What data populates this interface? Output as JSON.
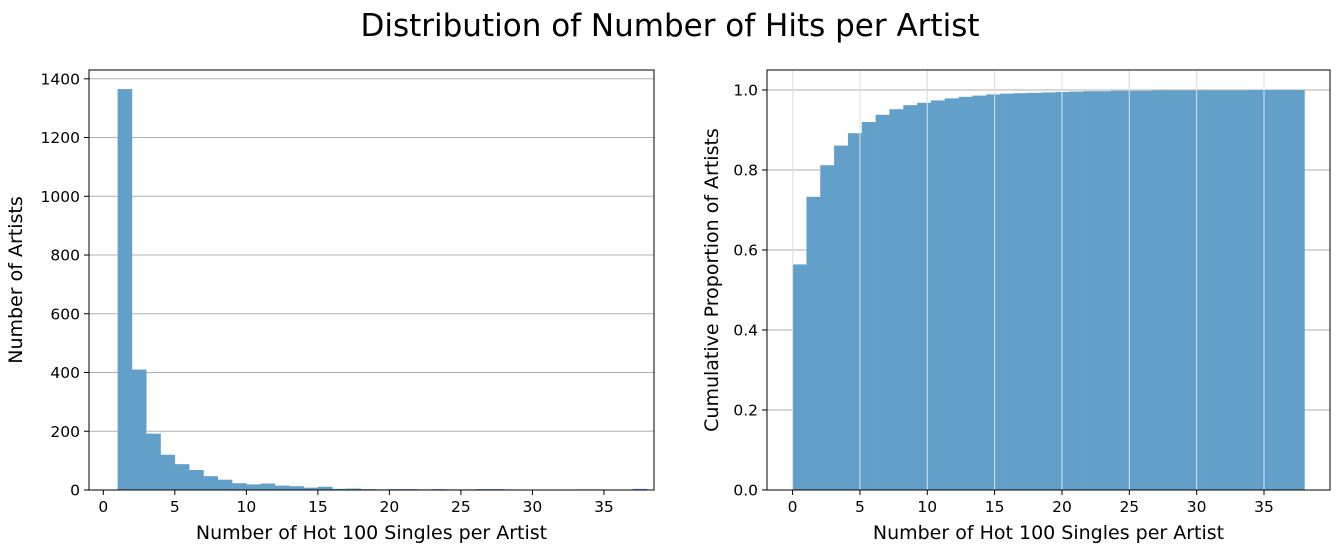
{
  "figure": {
    "title": "Distribution of Number of Hits per Artist",
    "bar_color": "#62a0ca",
    "grid_color": "#b0b0b0"
  },
  "chart_data": [
    {
      "type": "bar",
      "subtype": "histogram",
      "xlabel": "Number of Hot 100 Singles per Artist",
      "ylabel": "Number of Artists",
      "xlim": [
        -1,
        38.5
      ],
      "ylim": [
        0,
        1430
      ],
      "xticks": [
        0,
        5,
        10,
        15,
        20,
        25,
        30,
        35
      ],
      "yticks": [
        0,
        200,
        400,
        600,
        800,
        1000,
        1200,
        1400
      ],
      "grid": "y",
      "bin_edges": [
        1,
        2,
        3,
        4,
        5,
        6,
        7,
        8,
        9,
        10,
        11,
        12,
        13,
        14,
        15,
        16,
        17,
        18,
        19,
        20,
        21,
        22,
        23,
        24,
        25,
        26,
        27,
        28,
        29,
        30,
        31,
        32,
        33,
        34,
        35,
        36,
        37,
        38
      ],
      "values": [
        1365,
        410,
        192,
        120,
        88,
        68,
        47,
        35,
        23,
        19,
        22,
        15,
        13,
        8,
        11,
        4,
        5,
        3,
        2,
        3,
        3,
        2,
        3,
        2,
        2,
        3,
        3,
        2,
        1,
        1,
        1,
        1,
        2,
        2,
        0,
        1,
        4
      ]
    },
    {
      "type": "bar",
      "subtype": "cumulative-histogram",
      "xlabel": "Number of Hot 100 Singles per Artist",
      "ylabel": "Cumulative Proportion of Artists",
      "xlim": [
        -1.9,
        39.9
      ],
      "ylim": [
        0,
        1.05
      ],
      "xticks": [
        0,
        5,
        10,
        15,
        20,
        25,
        30,
        35
      ],
      "yticks": [
        "0.0",
        "0.2",
        "0.4",
        "0.6",
        "0.8",
        "1.0"
      ],
      "grid": "both",
      "bin_edges": [
        0,
        1.027,
        2.054,
        3.081,
        4.108,
        5.135,
        6.162,
        7.189,
        8.216,
        9.243,
        10.27,
        11.297,
        12.324,
        13.351,
        14.378,
        15.405,
        16.432,
        17.459,
        18.486,
        19.513,
        20.54,
        21.567,
        22.594,
        23.621,
        24.648,
        25.675,
        26.702,
        27.729,
        28.756,
        29.783,
        30.81,
        31.837,
        32.864,
        33.891,
        34.918,
        35.945,
        36.972,
        38
      ],
      "values": [
        0.564,
        0.733,
        0.812,
        0.861,
        0.892,
        0.92,
        0.938,
        0.952,
        0.962,
        0.968,
        0.974,
        0.979,
        0.983,
        0.986,
        0.989,
        0.991,
        0.992,
        0.993,
        0.994,
        0.995,
        0.996,
        0.997,
        0.997,
        0.998,
        0.998,
        0.998,
        0.999,
        0.999,
        0.999,
        0.999,
        0.999,
        0.999,
        0.999,
        1.0,
        1.0,
        1.0,
        1.0
      ]
    }
  ]
}
